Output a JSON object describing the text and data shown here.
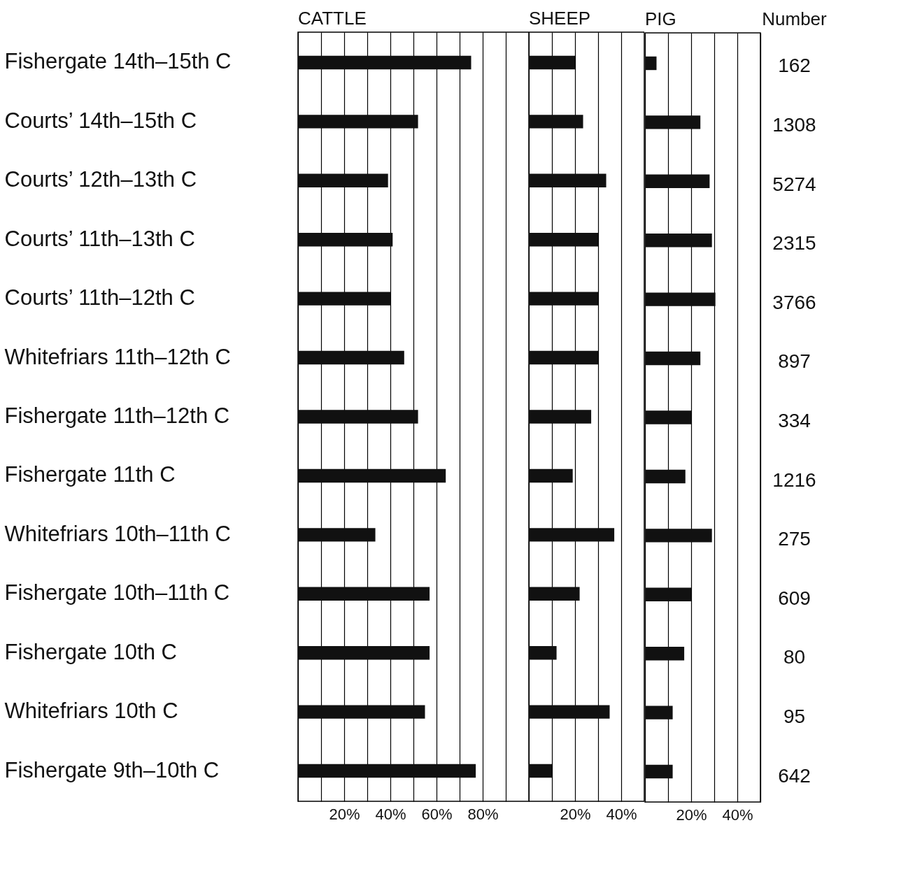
{
  "chart_data": [
    {
      "type": "bar",
      "orientation": "horizontal",
      "title": "CATTLE",
      "categories": [
        "Fishergate 14th–15th C",
        "Courts’ 14th–15th C",
        "Courts’ 12th–13th C",
        "Courts’ 11th–13th C",
        "Courts’ 11th–12th C",
        "Whitefriars 11th–12th C",
        "Fishergate 11th–12th C",
        "Fishergate 11th C",
        "Whitefriars 10th–11th C",
        "Fishergate 10th–11th C",
        "Fishergate 10th C",
        "Whitefriars 10th C",
        "Fishergate 9th–10th C"
      ],
      "series": [
        {
          "color": "#111111",
          "values": [
            75,
            52,
            39,
            41,
            40,
            46,
            52,
            64,
            33.5,
            57,
            57,
            55,
            77
          ]
        }
      ],
      "xlim": [
        0,
        100
      ],
      "xticks": [
        {
          "value": 0,
          "label": null
        },
        {
          "value": 10,
          "label": null
        },
        {
          "value": 20,
          "label": "20%"
        },
        {
          "value": 30,
          "label": null
        },
        {
          "value": 40,
          "label": "40%"
        },
        {
          "value": 50,
          "label": null
        },
        {
          "value": 60,
          "label": "60%"
        },
        {
          "value": 70,
          "label": null
        },
        {
          "value": 80,
          "label": "80%"
        },
        {
          "value": 90,
          "label": null
        },
        {
          "value": 100,
          "label": null
        }
      ],
      "grid": "x"
    },
    {
      "type": "bar",
      "orientation": "horizontal",
      "title": "SHEEP",
      "categories": [
        null,
        null,
        null,
        null,
        null,
        null,
        null,
        null,
        null,
        null,
        null,
        null,
        null
      ],
      "series": [
        {
          "color": "#111111",
          "values": [
            20,
            23.5,
            33.5,
            30,
            30,
            30,
            27,
            19,
            37,
            22,
            12,
            35,
            10
          ]
        }
      ],
      "xlim": [
        0,
        50
      ],
      "xticks": [
        {
          "value": 0,
          "label": null
        },
        {
          "value": 10,
          "label": null
        },
        {
          "value": 20,
          "label": "20%"
        },
        {
          "value": 30,
          "label": null
        },
        {
          "value": 40,
          "label": "40%"
        },
        {
          "value": 50,
          "label": null
        }
      ],
      "grid": "x",
      "tick_labels": "x"
    },
    {
      "type": "bar",
      "orientation": "horizontal",
      "title": "PIG",
      "categories": [
        null,
        null,
        null,
        null,
        null,
        null,
        null,
        null,
        null,
        null,
        null,
        null,
        null
      ],
      "series": [
        {
          "color": "#111111",
          "values": [
            5,
            24,
            28,
            29,
            30.5,
            24,
            20,
            17.5,
            29,
            20,
            17,
            12,
            12
          ]
        }
      ],
      "xlim": [
        0,
        50
      ],
      "xticks": [
        {
          "value": 0,
          "label": null
        },
        {
          "value": 10,
          "label": null
        },
        {
          "value": 20,
          "label": "20%"
        },
        {
          "value": 30,
          "label": null
        },
        {
          "value": 40,
          "label": "40%"
        },
        {
          "value": 50,
          "label": null
        }
      ],
      "grid": "x",
      "tick_labels": "x",
      "annotations": [
        "Number",
        "162",
        "1308",
        "5274",
        "2315",
        "3766",
        "897",
        "334",
        "1216",
        "275",
        "609",
        "80",
        "95",
        "642"
      ]
    }
  ]
}
